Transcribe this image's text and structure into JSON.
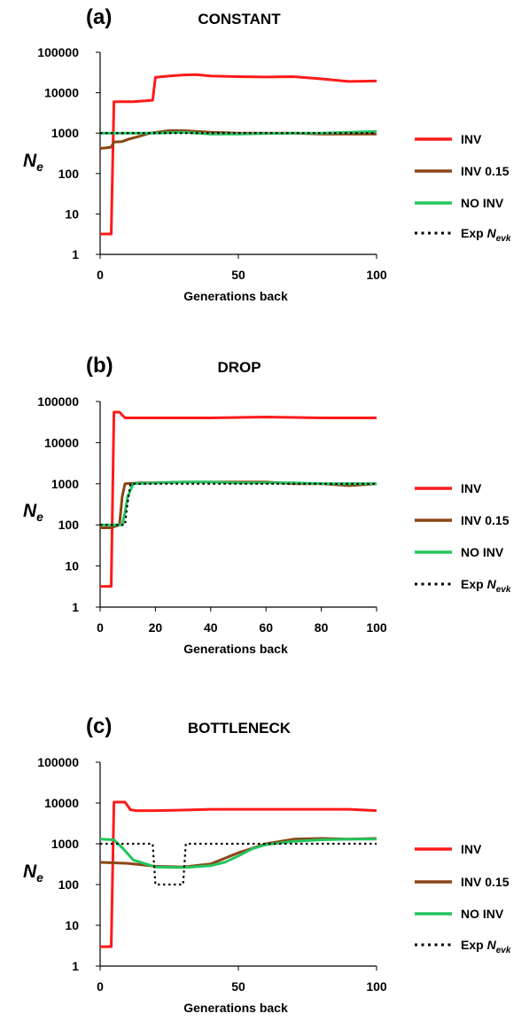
{
  "figure": {
    "legend": [
      {
        "key": "INV",
        "label": "INV",
        "color": "#ff1a1a",
        "dash": false
      },
      {
        "key": "INV015",
        "label": "INV 0.15",
        "color": "#8b4513",
        "dash": false
      },
      {
        "key": "NOINV",
        "label": "NO INV",
        "color": "#22c55e",
        "dash": false
      },
      {
        "key": "EXP",
        "label": "Exp N",
        "sub": "evk",
        "color": "#000000",
        "dash": true
      }
    ],
    "y_symbol": "N",
    "y_sub": "e"
  },
  "chart_data": [
    {
      "type": "line",
      "panel_label": "(a)",
      "title": "CONSTANT",
      "xlabel": "Generations back",
      "ylabel": "N_e",
      "y_scale": "log",
      "ylim": [
        1,
        100000
      ],
      "xlim": [
        0,
        100
      ],
      "xticks": [
        0,
        50,
        100
      ],
      "yticks": [
        1,
        10,
        100,
        1000,
        10000,
        100000
      ],
      "series": [
        {
          "name": "INV",
          "color": "#ff1a1a",
          "points": [
            [
              0,
              3.2
            ],
            [
              4,
              3.2
            ],
            [
              5,
              6000
            ],
            [
              8,
              6000
            ],
            [
              12,
              6000
            ],
            [
              19,
              6500
            ],
            [
              20,
              24000
            ],
            [
              25,
              26000
            ],
            [
              30,
              27500
            ],
            [
              35,
              28000
            ],
            [
              40,
              26000
            ],
            [
              50,
              25000
            ],
            [
              60,
              24500
            ],
            [
              70,
              25000
            ],
            [
              80,
              22000
            ],
            [
              90,
              19000
            ],
            [
              100,
              19500
            ]
          ]
        },
        {
          "name": "INV 0.15",
          "color": "#8b4513",
          "points": [
            [
              0,
              420
            ],
            [
              2,
              430
            ],
            [
              4,
              450
            ],
            [
              5,
              600
            ],
            [
              8,
              620
            ],
            [
              10,
              700
            ],
            [
              14,
              830
            ],
            [
              18,
              1000
            ],
            [
              25,
              1150
            ],
            [
              30,
              1150
            ],
            [
              40,
              1050
            ],
            [
              50,
              1000
            ],
            [
              60,
              1000
            ],
            [
              70,
              1000
            ],
            [
              80,
              950
            ],
            [
              90,
              950
            ],
            [
              100,
              950
            ]
          ]
        },
        {
          "name": "NO INV",
          "color": "#22c55e",
          "points": [
            [
              0,
              1000
            ],
            [
              10,
              1000
            ],
            [
              20,
              1000
            ],
            [
              30,
              1050
            ],
            [
              40,
              950
            ],
            [
              50,
              950
            ],
            [
              60,
              980
            ],
            [
              70,
              1000
            ],
            [
              80,
              1000
            ],
            [
              90,
              1050
            ],
            [
              100,
              1100
            ]
          ]
        },
        {
          "name": "Exp Nevk",
          "color": "#000000",
          "dash": true,
          "points": [
            [
              0,
              1000
            ],
            [
              100,
              1000
            ]
          ]
        }
      ]
    },
    {
      "type": "line",
      "panel_label": "(b)",
      "title": "DROP",
      "xlabel": "Generations back",
      "ylabel": "N_e",
      "y_scale": "log",
      "ylim": [
        1,
        100000
      ],
      "xlim": [
        0,
        100
      ],
      "xticks": [
        0,
        20,
        40,
        60,
        80,
        100
      ],
      "yticks": [
        1,
        10,
        100,
        1000,
        10000,
        100000
      ],
      "series": [
        {
          "name": "INV",
          "color": "#ff1a1a",
          "points": [
            [
              0,
              3.2
            ],
            [
              4,
              3.2
            ],
            [
              5,
              55000
            ],
            [
              7,
              55000
            ],
            [
              9,
              40000
            ],
            [
              20,
              40000
            ],
            [
              40,
              40000
            ],
            [
              60,
              42000
            ],
            [
              80,
              40000
            ],
            [
              100,
              40000
            ]
          ]
        },
        {
          "name": "INV 0.15",
          "color": "#8b4513",
          "points": [
            [
              0,
              85
            ],
            [
              4,
              85
            ],
            [
              7,
              100
            ],
            [
              8,
              500
            ],
            [
              9,
              1000
            ],
            [
              15,
              1050
            ],
            [
              20,
              1050
            ],
            [
              30,
              1100
            ],
            [
              40,
              1100
            ],
            [
              50,
              1100
            ],
            [
              60,
              1100
            ],
            [
              70,
              1000
            ],
            [
              80,
              1000
            ],
            [
              90,
              900
            ],
            [
              96,
              950
            ],
            [
              100,
              1000
            ]
          ]
        },
        {
          "name": "NO INV",
          "color": "#22c55e",
          "points": [
            [
              0,
              100
            ],
            [
              8,
              100
            ],
            [
              9,
              200
            ],
            [
              10,
              500
            ],
            [
              12,
              1000
            ],
            [
              20,
              1050
            ],
            [
              30,
              1100
            ],
            [
              40,
              1100
            ],
            [
              50,
              1050
            ],
            [
              60,
              1050
            ],
            [
              70,
              1050
            ],
            [
              80,
              1000
            ],
            [
              90,
              1000
            ],
            [
              100,
              1000
            ]
          ]
        },
        {
          "name": "Exp Nevk",
          "color": "#000000",
          "dash": true,
          "points": [
            [
              0,
              100
            ],
            [
              9,
              100
            ],
            [
              9.8,
              300
            ],
            [
              11,
              1000
            ],
            [
              100,
              1000
            ]
          ]
        }
      ]
    },
    {
      "type": "line",
      "panel_label": "(c)",
      "title": "BOTTLENECK",
      "xlabel": "Generations back",
      "ylabel": "N_e",
      "y_scale": "log",
      "ylim": [
        1,
        100000
      ],
      "xlim": [
        0,
        100
      ],
      "xticks": [
        0,
        50,
        100
      ],
      "yticks": [
        1,
        10,
        100,
        1000,
        10000,
        100000
      ],
      "series": [
        {
          "name": "INV",
          "color": "#ff1a1a",
          "points": [
            [
              0,
              3
            ],
            [
              4,
              3
            ],
            [
              5,
              10500
            ],
            [
              9,
              10500
            ],
            [
              11,
              6800
            ],
            [
              13,
              6500
            ],
            [
              20,
              6500
            ],
            [
              30,
              6700
            ],
            [
              40,
              7000
            ],
            [
              60,
              7000
            ],
            [
              80,
              7000
            ],
            [
              90,
              7000
            ],
            [
              100,
              6500
            ]
          ]
        },
        {
          "name": "INV 0.15",
          "color": "#8b4513",
          "points": [
            [
              0,
              350
            ],
            [
              10,
              330
            ],
            [
              20,
              280
            ],
            [
              30,
              270
            ],
            [
              40,
              320
            ],
            [
              50,
              600
            ],
            [
              60,
              1000
            ],
            [
              70,
              1300
            ],
            [
              80,
              1350
            ],
            [
              90,
              1300
            ],
            [
              100,
              1350
            ]
          ]
        },
        {
          "name": "NO INV",
          "color": "#22c55e",
          "points": [
            [
              0,
              1300
            ],
            [
              5,
              1250
            ],
            [
              8,
              800
            ],
            [
              12,
              400
            ],
            [
              20,
              270
            ],
            [
              30,
              260
            ],
            [
              40,
              290
            ],
            [
              45,
              350
            ],
            [
              50,
              500
            ],
            [
              55,
              750
            ],
            [
              60,
              950
            ],
            [
              70,
              1150
            ],
            [
              80,
              1250
            ],
            [
              90,
              1300
            ],
            [
              100,
              1300
            ]
          ]
        },
        {
          "name": "Exp Nevk",
          "color": "#000000",
          "dash": true,
          "points": [
            [
              0,
              1000
            ],
            [
              19,
              1000
            ],
            [
              20,
              100
            ],
            [
              30,
              100
            ],
            [
              31,
              1000
            ],
            [
              100,
              1000
            ]
          ]
        }
      ]
    }
  ]
}
